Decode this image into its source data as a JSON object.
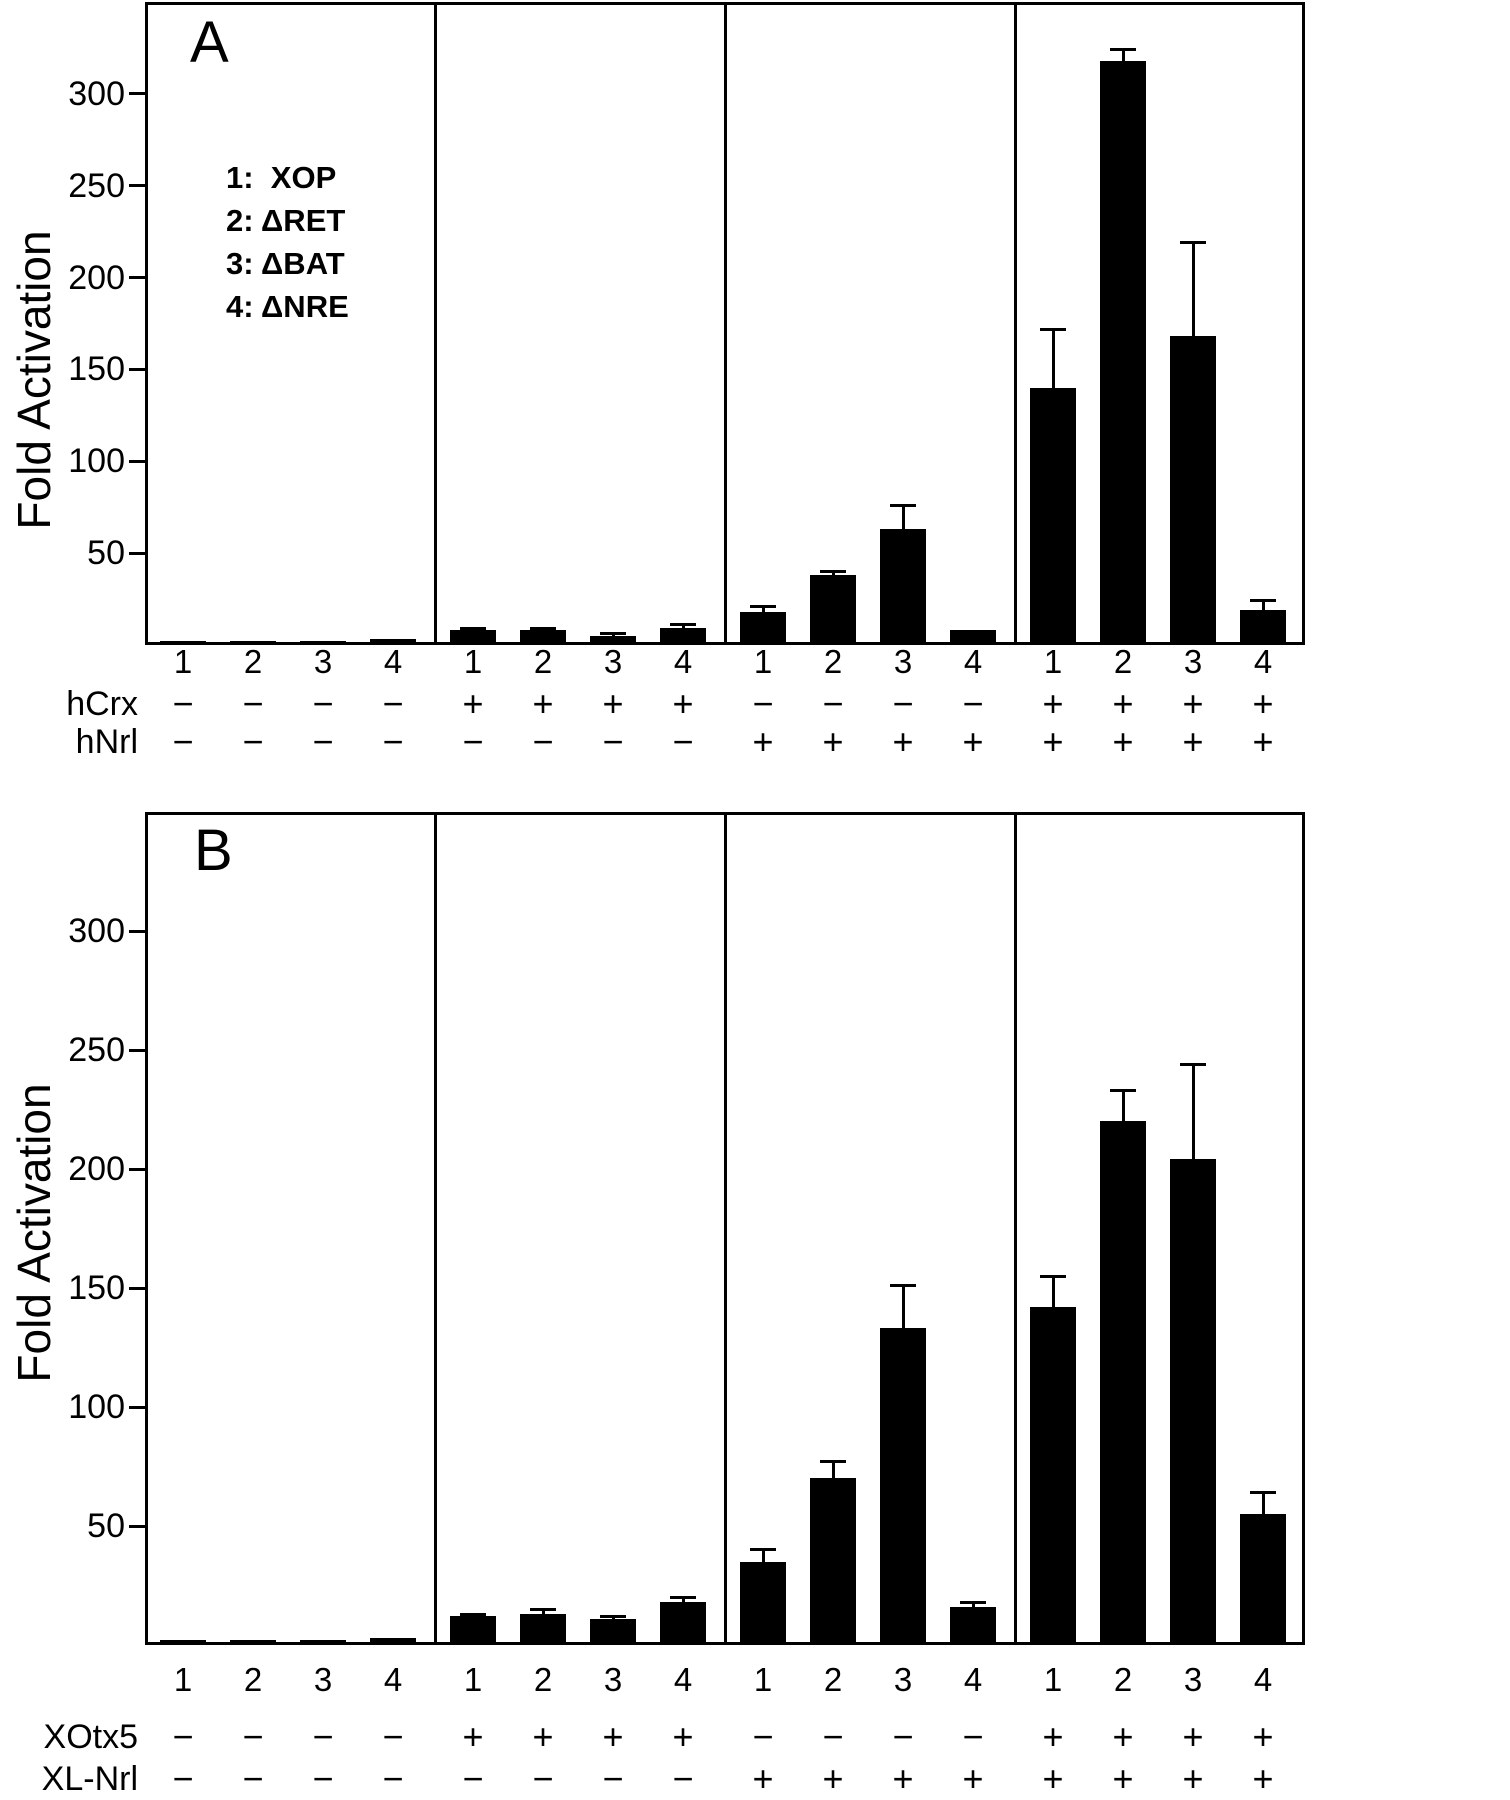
{
  "figure": {
    "description_visible_text_only": "Two-panel bar figure, panels A and B, y-axis Fold Activation",
    "bar_color": "#000000"
  },
  "chart_data": [
    {
      "type": "bar",
      "panel": "A",
      "ylabel": "Fold Activation",
      "ylim": [
        0,
        350
      ],
      "yticks": [
        50,
        100,
        150,
        200,
        250,
        300
      ],
      "grid": false,
      "legend_position": "upper-left-inside",
      "bar_labels": [
        "1",
        "2",
        "3",
        "4"
      ],
      "legend_lines": [
        "1:  XOP",
        "2: ΔRET",
        "3: ΔBAT",
        "4: ΔNRE"
      ],
      "condition_rows": [
        {
          "label": "hCrx",
          "values": [
            "−",
            "−",
            "−",
            "−",
            "+",
            "+",
            "+",
            "+",
            "−",
            "−",
            "−",
            "−",
            "+",
            "+",
            "+",
            "+"
          ]
        },
        {
          "label": "hNrl",
          "values": [
            "−",
            "−",
            "−",
            "−",
            "−",
            "−",
            "−",
            "−",
            "+",
            "+",
            "+",
            "+",
            "+",
            "+",
            "+",
            "+"
          ]
        }
      ],
      "groups": [
        {
          "values": [
            2,
            2,
            2,
            3
          ],
          "errors": [
            0,
            0,
            0,
            0
          ]
        },
        {
          "values": [
            8,
            8,
            5,
            9
          ],
          "errors": [
            1,
            1,
            1,
            2
          ]
        },
        {
          "values": [
            18,
            38,
            63,
            8
          ],
          "errors": [
            3,
            2,
            13,
            0
          ]
        },
        {
          "values": [
            140,
            318,
            168,
            19
          ],
          "errors": [
            32,
            6,
            51,
            5
          ]
        }
      ]
    },
    {
      "type": "bar",
      "panel": "B",
      "ylabel": "Fold Activation",
      "ylim": [
        0,
        350
      ],
      "yticks": [
        50,
        100,
        150,
        200,
        250,
        300
      ],
      "grid": false,
      "bar_labels": [
        "1",
        "2",
        "3",
        "4"
      ],
      "condition_rows": [
        {
          "label": "XOtx5",
          "values": [
            "−",
            "−",
            "−",
            "−",
            "+",
            "+",
            "+",
            "+",
            "−",
            "−",
            "−",
            "−",
            "+",
            "+",
            "+",
            "+"
          ]
        },
        {
          "label": "XL-Nrl",
          "values": [
            "−",
            "−",
            "−",
            "−",
            "−",
            "−",
            "−",
            "−",
            "+",
            "+",
            "+",
            "+",
            "+",
            "+",
            "+",
            "+"
          ]
        }
      ],
      "groups": [
        {
          "values": [
            2,
            2,
            2,
            3
          ],
          "errors": [
            0,
            0,
            0,
            0
          ]
        },
        {
          "values": [
            12,
            13,
            11,
            18
          ],
          "errors": [
            1,
            2,
            1,
            2
          ]
        },
        {
          "values": [
            35,
            70,
            133,
            16
          ],
          "errors": [
            5,
            7,
            18,
            2
          ]
        },
        {
          "values": [
            142,
            220,
            204,
            55
          ],
          "errors": [
            13,
            13,
            40,
            9
          ]
        }
      ]
    }
  ]
}
